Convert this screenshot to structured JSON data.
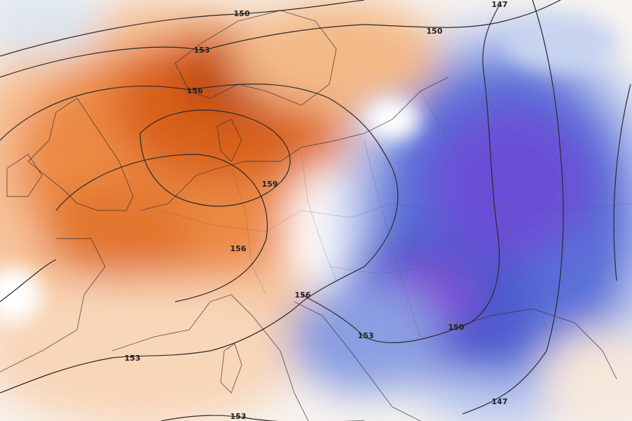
{
  "contour_labels": [
    150,
    147,
    150,
    153,
    156,
    159,
    156,
    156,
    153,
    150,
    153,
    147,
    153
  ]
}
